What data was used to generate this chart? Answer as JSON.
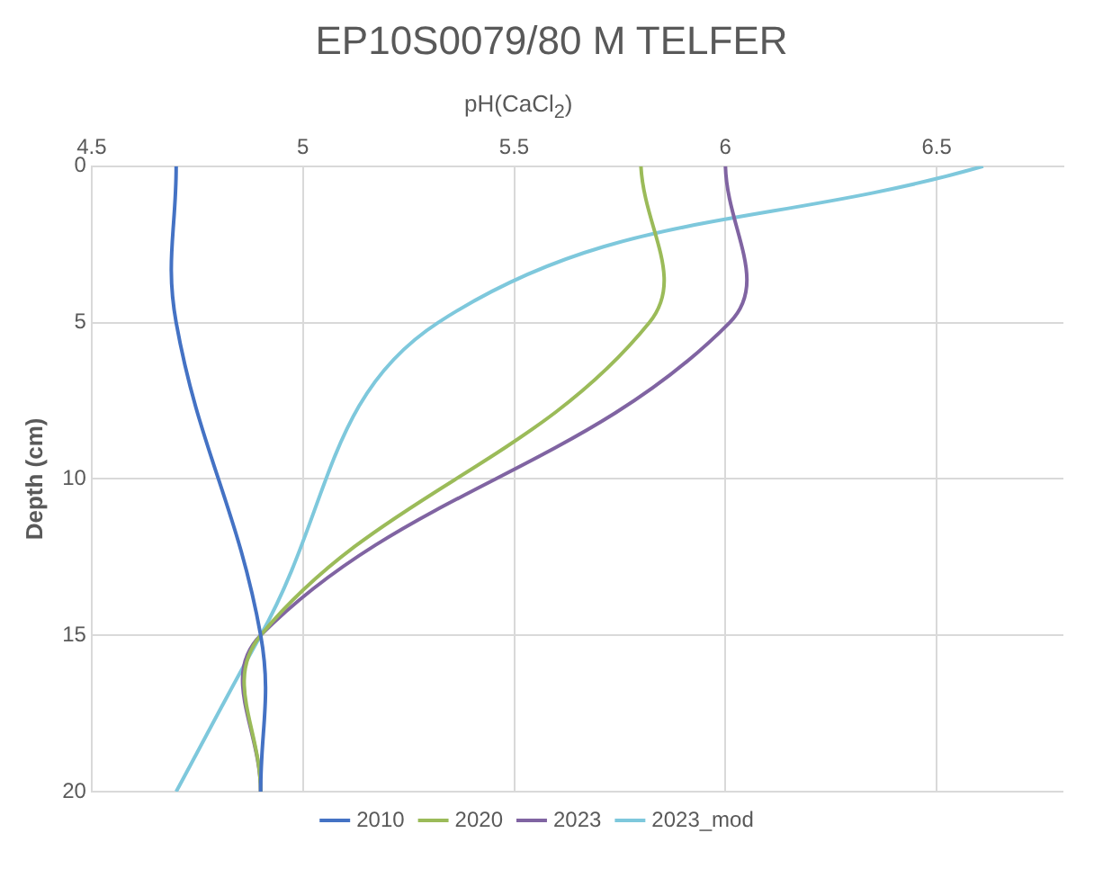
{
  "chart_data": {
    "type": "line",
    "title": "EP10S0079/80 M TELFER",
    "xlabel": "pH(CaCl$_{2}$)",
    "ylabel": "Depth (cm)",
    "xlim": [
      4.5,
      6.8
    ],
    "xticks": [
      4.5,
      5,
      5.5,
      6,
      6.5
    ],
    "ylim": [
      20,
      0
    ],
    "yticks": [
      0,
      5,
      10,
      15,
      20
    ],
    "grid": true,
    "legend": "bottom",
    "marker": "none",
    "line_style": "solid",
    "series": [
      {
        "name": "2010",
        "color": "#4472c4",
        "x": [
          4.7,
          4.7,
          4.9,
          4.9
        ],
        "values": [
          0,
          5,
          15,
          20
        ]
      },
      {
        "name": "2020",
        "color": "#9bbb59",
        "x": [
          5.8,
          5.82,
          4.9,
          4.9
        ],
        "values": [
          0,
          5,
          15,
          20
        ]
      },
      {
        "name": "2023",
        "color": "#8064a2",
        "x": [
          6.0,
          6.01,
          4.9,
          4.9
        ],
        "values": [
          0,
          5,
          15,
          20
        ]
      },
      {
        "name": "2023_mod",
        "color": "#7ec8dc",
        "x": [
          6.61,
          5.32,
          4.9,
          4.7
        ],
        "values": [
          0,
          5,
          15,
          20
        ]
      }
    ]
  }
}
